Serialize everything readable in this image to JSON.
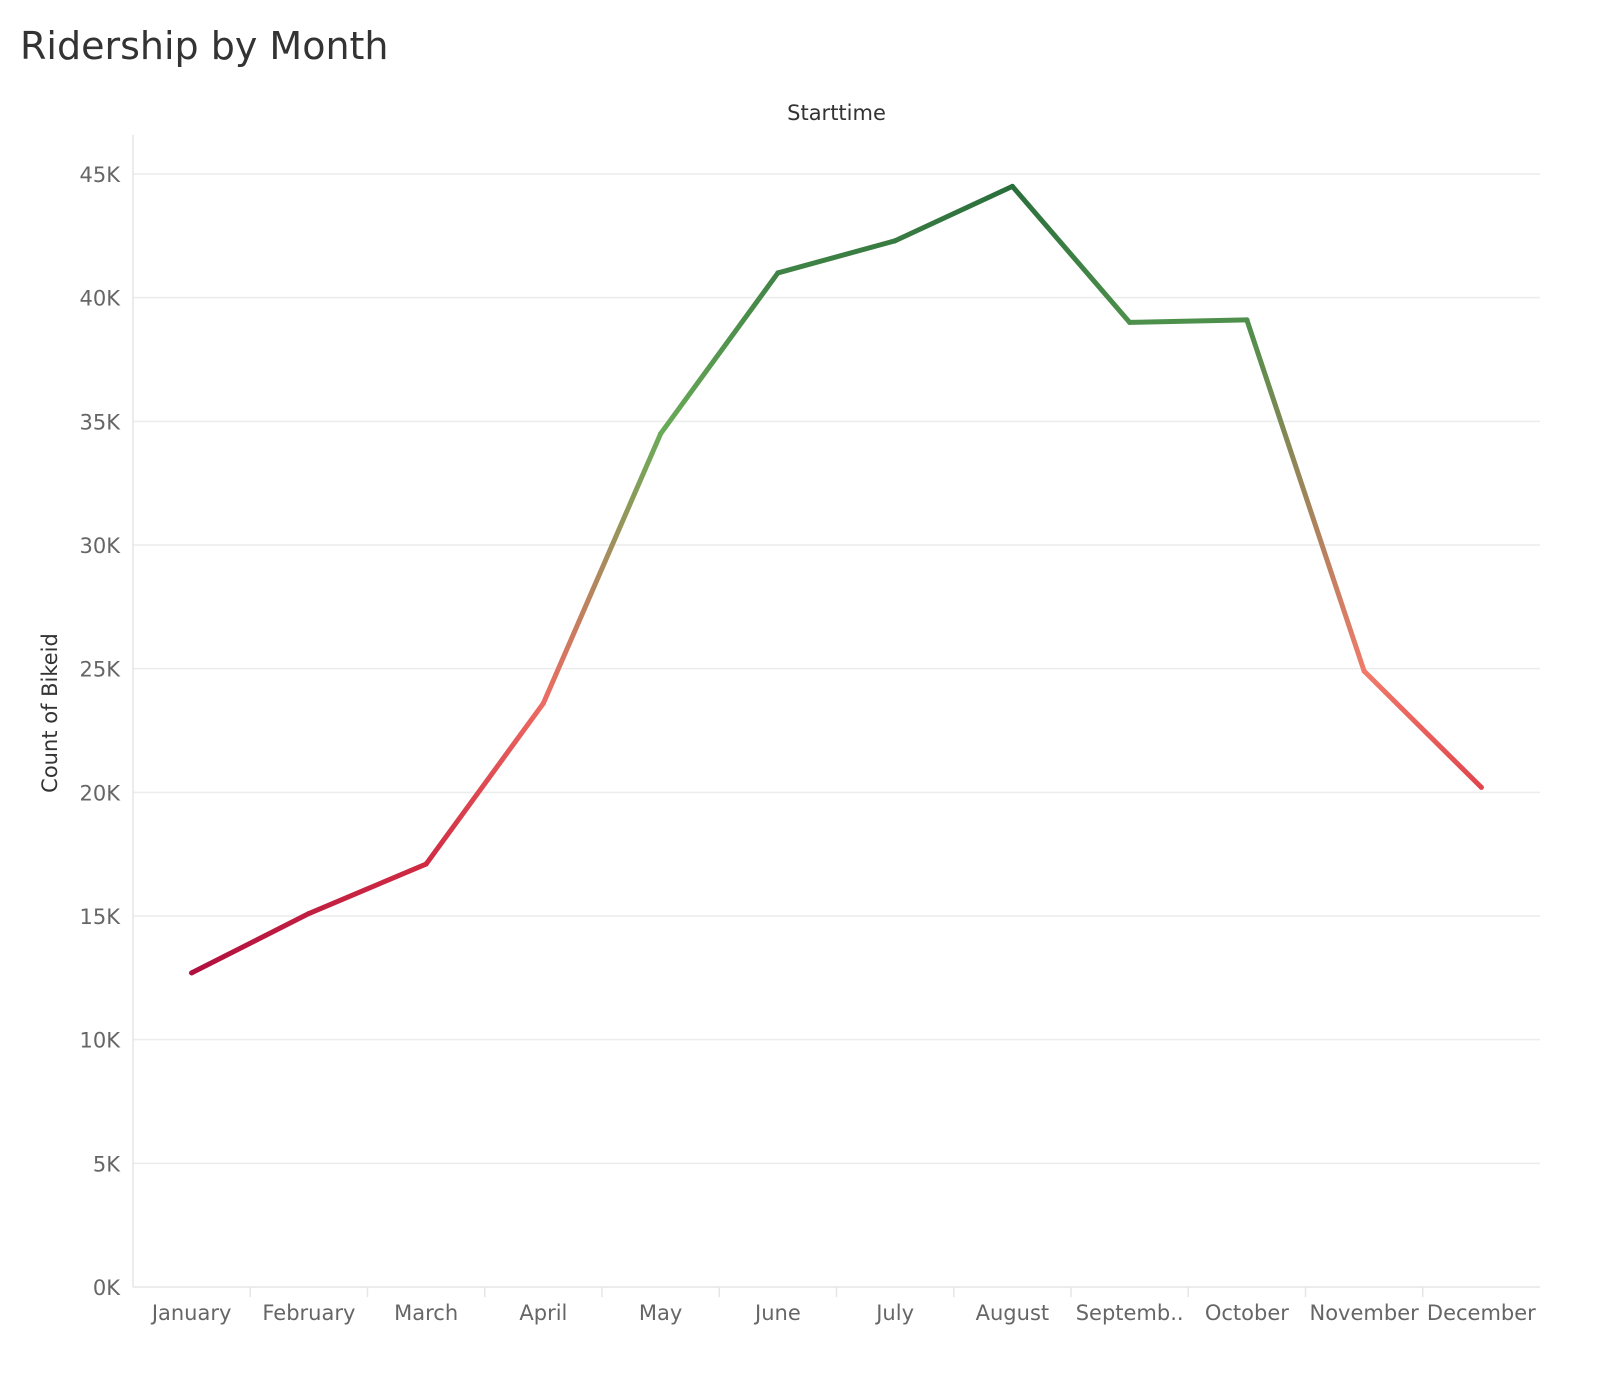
{
  "chart_data": {
    "type": "line",
    "title": "Ridership by Month",
    "xlabel": "Starttime",
    "ylabel": "Count of Bikeid",
    "categories": [
      "January",
      "February",
      "March",
      "April",
      "May",
      "June",
      "July",
      "August",
      "Septemb..",
      "October",
      "November",
      "December"
    ],
    "series": [
      {
        "values": [
          12700,
          15100,
          17100,
          23600,
          34500,
          41000,
          42300,
          44500,
          39000,
          39100,
          24900,
          20200
        ]
      }
    ],
    "ylim": [
      0,
      45000
    ],
    "yticks": [
      0,
      5000,
      10000,
      15000,
      20000,
      25000,
      30000,
      35000,
      40000,
      45000
    ],
    "ytick_labels": [
      "0K",
      "5K",
      "10K",
      "15K",
      "20K",
      "25K",
      "30K",
      "35K",
      "40K",
      "45K"
    ],
    "grid": true,
    "legend": "none",
    "color_scale": {
      "min_value": 12700,
      "mid_value": 24900,
      "max_value": 44500,
      "colors": [
        "#b0103f",
        "#dc3545",
        "#f07a6a",
        "#6fb05a",
        "#2a6e3c"
      ]
    }
  }
}
